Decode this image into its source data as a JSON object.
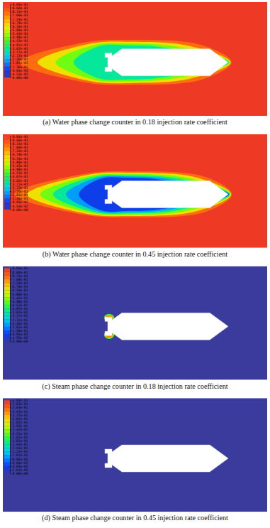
{
  "chart_data": [
    {
      "type": "heatmap",
      "title": "(a) Water phase change counter in 0.18 injection rate coefficient",
      "colorbar_range": [
        0,
        0.905
      ],
      "colorbar_ticks": [
        {
          "value": 0.905,
          "label": "9.05e-01"
        },
        {
          "value": 0.86,
          "label": "8.60e-01"
        },
        {
          "value": 0.815,
          "label": "8.15e-01"
        },
        {
          "value": 0.769,
          "label": "7.69e-01"
        },
        {
          "value": 0.724,
          "label": "7.24e-01"
        },
        {
          "value": 0.679,
          "label": "6.79e-01"
        },
        {
          "value": 0.634,
          "label": "6.34e-01"
        },
        {
          "value": 0.588,
          "label": "5.88e-01"
        },
        {
          "value": 0.543,
          "label": "5.43e-01"
        },
        {
          "value": 0.498,
          "label": "4.98e-01"
        },
        {
          "value": 0.453,
          "label": "4.53e-01"
        },
        {
          "value": 0.407,
          "label": "4.07e-01"
        },
        {
          "value": 0.362,
          "label": "3.62e-01"
        },
        {
          "value": 0.317,
          "label": "3.17e-01"
        },
        {
          "value": 0.272,
          "label": "2.72e-01"
        },
        {
          "value": 0.226,
          "label": "2.26e-01"
        },
        {
          "value": 0.181,
          "label": "1.81e-01"
        },
        {
          "value": 0.136,
          "label": "1.36e-01"
        },
        {
          "value": 0.0905,
          "label": "9.05e-02"
        },
        {
          "value": 0.0453,
          "label": "4.53e-02"
        },
        {
          "value": 0,
          "label": "0.00e+00"
        }
      ],
      "background": 0.905,
      "levels": [
        0.8,
        0.65,
        0.5,
        0.35
      ]
    },
    {
      "type": "heatmap",
      "title": "(b) Water phase change counter in 0.45 injection rate coefficient",
      "colorbar_range": [
        0,
        0.905
      ],
      "colorbar_ticks": [
        {
          "value": 0.905,
          "label": "9.05e-01"
        },
        {
          "value": 0.86,
          "label": "8.60e-01"
        },
        {
          "value": 0.815,
          "label": "8.15e-01"
        },
        {
          "value": 0.769,
          "label": "7.69e-01"
        },
        {
          "value": 0.724,
          "label": "7.24e-01"
        },
        {
          "value": 0.679,
          "label": "6.79e-01"
        },
        {
          "value": 0.634,
          "label": "6.34e-01"
        },
        {
          "value": 0.588,
          "label": "5.88e-01"
        },
        {
          "value": 0.543,
          "label": "5.43e-01"
        },
        {
          "value": 0.498,
          "label": "4.98e-01"
        },
        {
          "value": 0.453,
          "label": "4.53e-01"
        },
        {
          "value": 0.407,
          "label": "4.07e-01"
        },
        {
          "value": 0.362,
          "label": "3.62e-01"
        },
        {
          "value": 0.317,
          "label": "3.17e-01"
        },
        {
          "value": 0.272,
          "label": "2.72e-01"
        },
        {
          "value": 0.226,
          "label": "2.26e-01"
        },
        {
          "value": 0.181,
          "label": "1.81e-01"
        },
        {
          "value": 0.136,
          "label": "1.36e-01"
        },
        {
          "value": 0.0905,
          "label": "9.05e-02"
        },
        {
          "value": 0.0453,
          "label": "4.53e-02"
        },
        {
          "value": 0,
          "label": "0.00e+00"
        }
      ],
      "background": 0.905,
      "levels": [
        0.8,
        0.65,
        0.5,
        0.35,
        0.2,
        0.08
      ]
    },
    {
      "type": "heatmap",
      "title": "(c) Steam phase change counter in 0.18 injection rate coefficient",
      "colorbar_range": [
        0,
        0.905
      ],
      "colorbar_ticks": [
        {
          "value": 0.905,
          "label": "9.05e-01"
        },
        {
          "value": 0.86,
          "label": "8.60e-01"
        },
        {
          "value": 0.815,
          "label": "8.15e-01"
        },
        {
          "value": 0.769,
          "label": "7.69e-01"
        },
        {
          "value": 0.724,
          "label": "7.24e-01"
        },
        {
          "value": 0.679,
          "label": "6.79e-01"
        },
        {
          "value": 0.634,
          "label": "6.34e-01"
        },
        {
          "value": 0.588,
          "label": "5.88e-01"
        },
        {
          "value": 0.543,
          "label": "5.43e-01"
        },
        {
          "value": 0.498,
          "label": "4.98e-01"
        },
        {
          "value": 0.453,
          "label": "4.53e-01"
        },
        {
          "value": 0.407,
          "label": "4.07e-01"
        },
        {
          "value": 0.362,
          "label": "3.62e-01"
        },
        {
          "value": 0.317,
          "label": "3.17e-01"
        },
        {
          "value": 0.272,
          "label": "2.72e-01"
        },
        {
          "value": 0.226,
          "label": "2.26e-01"
        },
        {
          "value": 0.181,
          "label": "1.81e-01"
        },
        {
          "value": 0.136,
          "label": "1.36e-01"
        },
        {
          "value": 0.0905,
          "label": "9.05e-02"
        },
        {
          "value": 0.0453,
          "label": "4.53e-02"
        },
        {
          "value": 0,
          "label": "0.00e+00"
        }
      ],
      "background": 0,
      "levels": [
        0.45,
        0.75
      ]
    },
    {
      "type": "heatmap",
      "title": "(d) Steam phase change counter in 0.45 injection rate coefficient",
      "colorbar_range": [
        0,
        0.403
      ],
      "colorbar_ticks": [
        {
          "value": 0.403,
          "label": "4.03e-01"
        },
        {
          "value": 0.383,
          "label": "3.83e-01"
        },
        {
          "value": 0.363,
          "label": "3.63e-01"
        },
        {
          "value": 0.343,
          "label": "3.43e-01"
        },
        {
          "value": 0.322,
          "label": "3.22e-01"
        },
        {
          "value": 0.302,
          "label": "3.02e-01"
        },
        {
          "value": 0.282,
          "label": "2.82e-01"
        },
        {
          "value": 0.262,
          "label": "2.62e-01"
        },
        {
          "value": 0.242,
          "label": "2.42e-01"
        },
        {
          "value": 0.221,
          "label": "2.21e-01"
        },
        {
          "value": 0.201,
          "label": "2.01e-01"
        },
        {
          "value": 0.181,
          "label": "1.81e-01"
        },
        {
          "value": 0.161,
          "label": "1.61e-01"
        },
        {
          "value": 0.141,
          "label": "1.41e-01"
        },
        {
          "value": 0.121,
          "label": "1.21e-01"
        },
        {
          "value": 0.101,
          "label": "1.01e-01"
        },
        {
          "value": 0.0806,
          "label": "8.06e-02"
        },
        {
          "value": 0.0604,
          "label": "6.04e-02"
        },
        {
          "value": 0.0403,
          "label": "4.03e-02"
        },
        {
          "value": 0.0201,
          "label": "2.01e-02"
        },
        {
          "value": 0,
          "label": "0.00e+00"
        }
      ],
      "background": 0,
      "levels": []
    }
  ]
}
